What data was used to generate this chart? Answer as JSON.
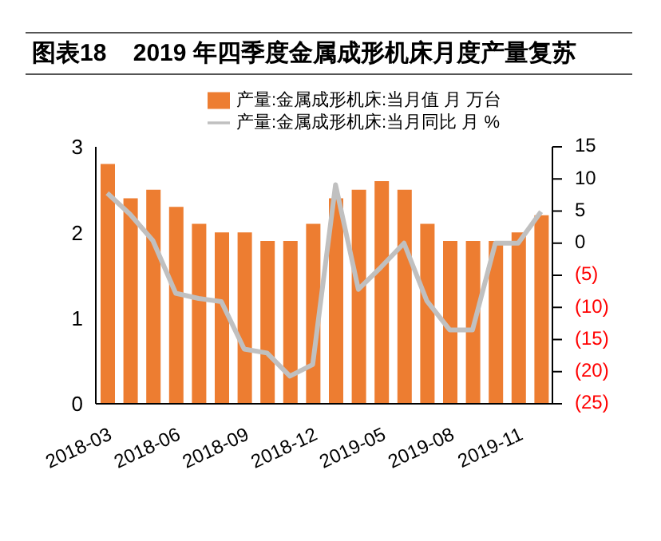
{
  "chart_data": {
    "type": "bar",
    "title": "图表18    2019 年四季度金属成形机床月度产量复苏",
    "categories": [
      "2018-03",
      null,
      null,
      "2018-06",
      null,
      null,
      "2018-09",
      null,
      null,
      "2018-12",
      null,
      null,
      "2019-05",
      null,
      null,
      "2019-08",
      null,
      null,
      "2019-11",
      null
    ],
    "series": [
      {
        "name": "产量:金属成形机床:当月值 月 万台",
        "color": "#ed7d31",
        "values": [
          2.8,
          2.4,
          2.5,
          2.3,
          2.1,
          2.0,
          2.0,
          1.9,
          1.9,
          2.1,
          2.4,
          2.5,
          2.6,
          2.5,
          2.1,
          1.9,
          1.9,
          1.9,
          2.0,
          2.2
        ]
      },
      {
        "name": "产量:金属成形机床:当月同比 月 %",
        "type": "line",
        "axis": "y2",
        "color": "#c0c0c0",
        "values": [
          7.8,
          4.5,
          0.4,
          -7.8,
          -8.6,
          -9.1,
          -16.5,
          -17.1,
          -20.7,
          -18.9,
          9.1,
          -7.2,
          -3.7,
          0,
          -9.0,
          -13.5,
          -13.5,
          0,
          0,
          4.9
        ]
      }
    ],
    "ylim": [
      0,
      3
    ],
    "yticks": [
      0,
      1,
      2,
      3
    ],
    "y2lim": [
      -25,
      15
    ],
    "y2ticks": [
      {
        "value": -25,
        "label": "(25)"
      },
      {
        "value": -20,
        "label": "(20)"
      },
      {
        "value": -15,
        "label": "(15)"
      },
      {
        "value": -10,
        "label": "(10)"
      },
      {
        "value": -5,
        "label": "(5)"
      },
      0,
      5,
      10,
      15
    ],
    "legend": "top",
    "grid": false,
    "marker": "none"
  }
}
